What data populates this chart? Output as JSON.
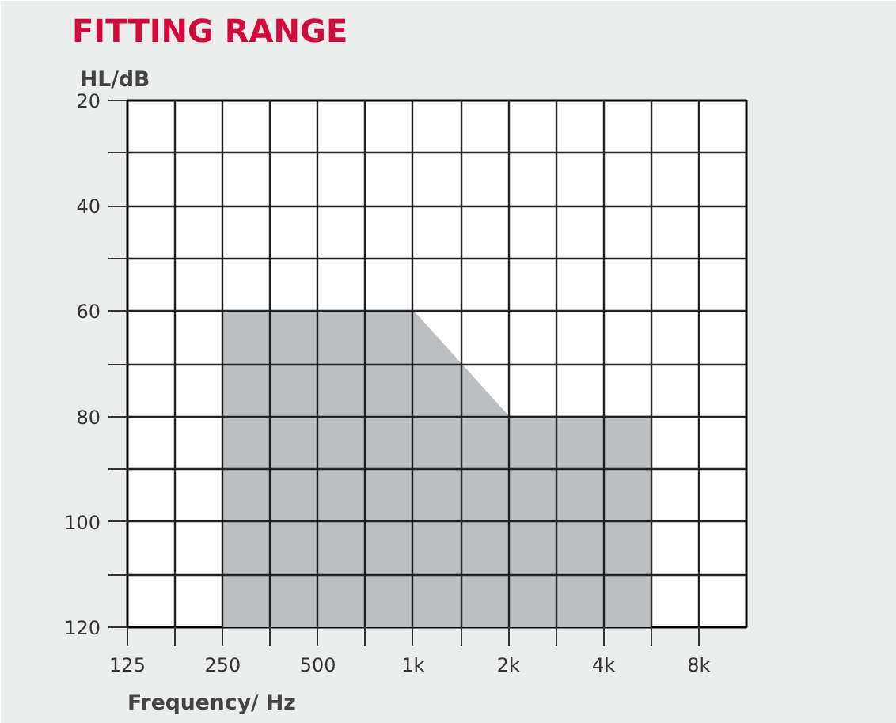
{
  "chart_data": {
    "type": "area",
    "title": "FITTING RANGE",
    "ylabel": "HL/dB",
    "xlabel": "Frequency/ Hz",
    "x": [
      250,
      250,
      1000,
      2000,
      5657,
      5657
    ],
    "series": [
      {
        "color": "#bcbfc1",
        "values": [
          120,
          60,
          60,
          80,
          80,
          120
        ]
      }
    ],
    "log": "x",
    "xlim": [
      125,
      11314
    ],
    "xticks": [
      125,
      {
        "value": 177,
        "label": null
      },
      250,
      {
        "value": 354,
        "label": null
      },
      500,
      {
        "value": 707,
        "label": null
      },
      {
        "value": 1000,
        "label": "1k"
      },
      {
        "value": 1414,
        "label": null
      },
      {
        "value": 2000,
        "label": "2k"
      },
      {
        "value": 2828,
        "label": null
      },
      {
        "value": 4000,
        "label": "4k"
      },
      {
        "value": 5657,
        "label": null
      },
      {
        "value": 8000,
        "label": "8k"
      }
    ],
    "ylim": [
      120,
      20
    ],
    "yticks": [
      20,
      {
        "value": 30,
        "label": null
      },
      40,
      {
        "value": 50,
        "label": null
      },
      60,
      {
        "value": 70,
        "label": null
      },
      80,
      {
        "value": 90,
        "label": null
      },
      100,
      {
        "value": 110,
        "label": null
      },
      120
    ],
    "grid": true
  }
}
